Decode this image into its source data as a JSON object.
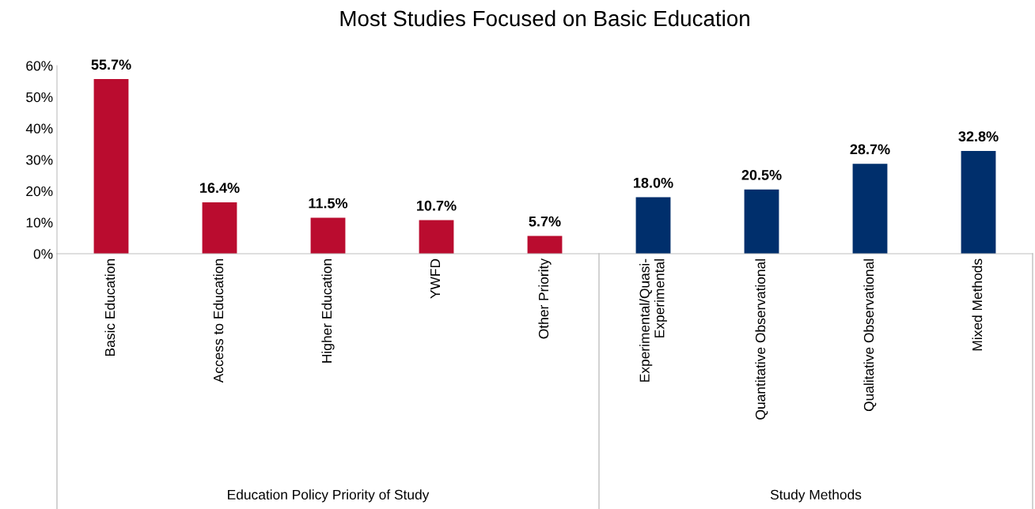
{
  "chart_data": {
    "type": "bar",
    "title": "Most Studies Focused on Basic Education",
    "categories": [
      "Basic Education",
      "Access to Education",
      "Higher Education",
      "YWFD",
      "Other Priority",
      "Experimental/Quasi-\nExperimental",
      "Quantitative Observational",
      "Qualitative Observational",
      "Mixed Methods"
    ],
    "values": [
      55.7,
      16.4,
      11.5,
      10.7,
      5.7,
      18.0,
      20.5,
      28.7,
      32.8
    ],
    "colors": [
      "#ba0c2f",
      "#ba0c2f",
      "#ba0c2f",
      "#ba0c2f",
      "#ba0c2f",
      "#002f6c",
      "#002f6c",
      "#002f6c",
      "#002f6c"
    ],
    "value_labels": [
      "55.7%",
      "16.4%",
      "11.5%",
      "10.7%",
      "5.7%",
      "18.0%",
      "20.5%",
      "28.7%",
      "32.8%"
    ],
    "ylim": [
      0,
      60
    ],
    "yticks": [
      {
        "value": 0,
        "label": "0%"
      },
      {
        "value": 10,
        "label": "10%"
      },
      {
        "value": 20,
        "label": "20%"
      },
      {
        "value": 30,
        "label": "30%"
      },
      {
        "value": 40,
        "label": "40%"
      },
      {
        "value": 50,
        "label": "50%"
      },
      {
        "value": 60,
        "label": "60%"
      }
    ],
    "annotations": [
      "Education Policy Priority of Study",
      "Study Methods"
    ],
    "grid": false,
    "legend": false
  }
}
